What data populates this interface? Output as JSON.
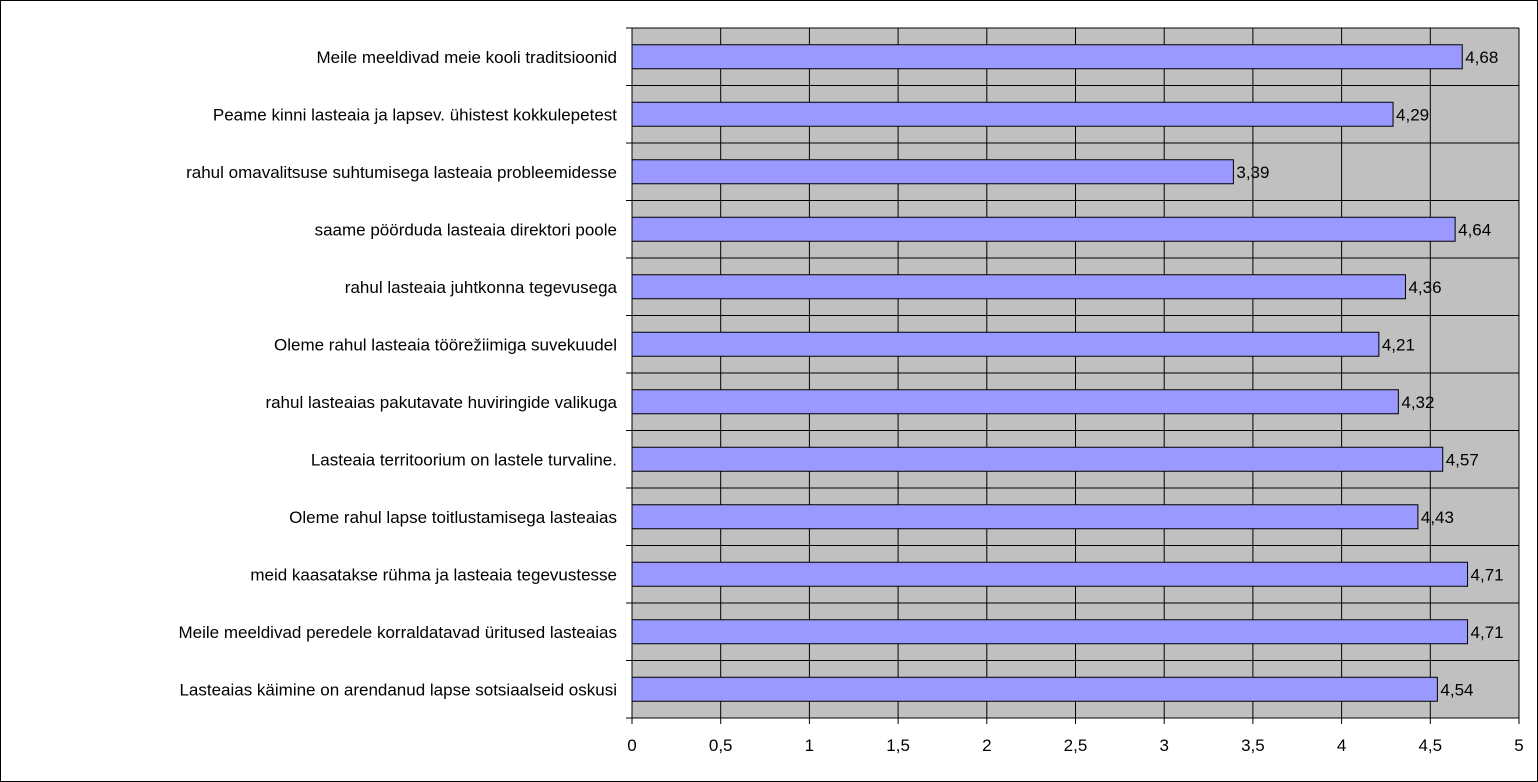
{
  "chart_data": {
    "type": "bar",
    "orientation": "horizontal",
    "title": "",
    "xlabel": "",
    "ylabel": "",
    "xlim": [
      0,
      5
    ],
    "x_ticks": [
      "0",
      "0,5",
      "1",
      "1,5",
      "2",
      "2,5",
      "3",
      "3,5",
      "4",
      "4,5",
      "5"
    ],
    "grid": true,
    "colors": {
      "bar_fill": "#9999ff",
      "bar_stroke": "#000000",
      "plot_bg": "#c0c0c0",
      "grid": "#000000"
    },
    "categories": [
      "Meile meeldivad meie kooli traditsioonid",
      "Peame kinni lasteaia ja lapsev. ühistest kokkulepetest",
      "rahul omavalitsuse suhtumisega lasteaia probleemidesse",
      "saame pöörduda lasteaia direktori poole",
      "rahul lasteaia juhtkonna tegevusega",
      "Oleme rahul lasteaia töörežiimiga suvekuudel",
      "rahul lasteaias pakutavate huviringide valikuga",
      "Lasteaia territoorium on lastele turvaline.",
      "Oleme rahul lapse toitlustamisega lasteaias",
      "meid kaasatakse rühma ja lasteaia tegevustesse",
      "Meile meeldivad  peredele korraldatavad üritused lasteaias",
      "Lasteaias käimine on arendanud  lapse sotsiaalseid oskusi"
    ],
    "values": [
      4.68,
      4.29,
      3.39,
      4.64,
      4.36,
      4.21,
      4.32,
      4.57,
      4.43,
      4.71,
      4.71,
      4.54
    ],
    "value_labels": [
      "4,68",
      "4,29",
      "3,39",
      "4,64",
      "4,36",
      "4,21",
      "4,32",
      "4,57",
      "4,43",
      "4,71",
      "4,71",
      "4,54"
    ]
  }
}
